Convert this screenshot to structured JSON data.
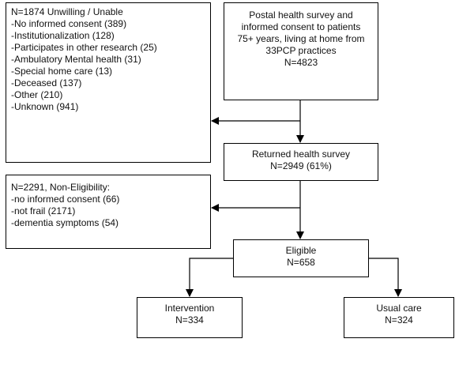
{
  "excluded": {
    "lines": [
      "N=1874 Unwilling / Unable",
      "-No informed consent (389)",
      "-Institutionalization (128)",
      "-Participates in other research (25)",
      "-Ambulatory Mental health (31)",
      "-Special home care (13)",
      "-Deceased (137)",
      "-Other (210)",
      "-Unknown (941)"
    ]
  },
  "survey": {
    "lines": [
      "Postal health survey and",
      "informed consent to patients",
      "75+ years, living at home from",
      "33PCP practices",
      "N=4823"
    ]
  },
  "returned": {
    "lines": [
      "Returned health survey",
      "N=2949 (61%)"
    ]
  },
  "noneligible": {
    "lines": [
      "N=2291, Non-Eligibility:",
      "-no informed consent (66)",
      "-not frail (2171)",
      "-dementia symptoms (54)"
    ]
  },
  "eligible": {
    "lines": [
      "Eligible",
      "N=658"
    ]
  },
  "intervention": {
    "lines": [
      "Intervention",
      "N=334"
    ]
  },
  "usual": {
    "lines": [
      "Usual care",
      "N=324"
    ]
  }
}
